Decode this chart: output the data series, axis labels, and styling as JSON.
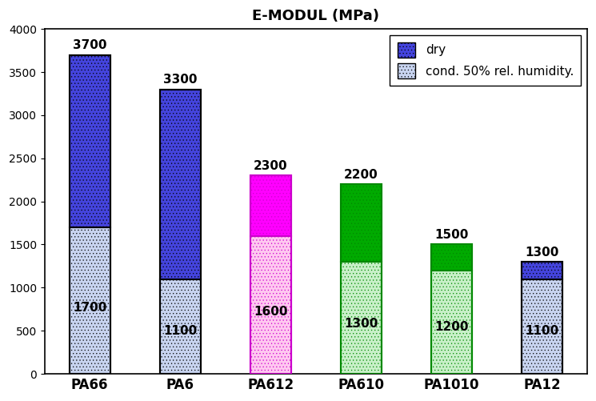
{
  "title": "E-MODUL (MPa)",
  "categories": [
    "PA66",
    "PA6",
    "PA612",
    "PA610",
    "PA1010",
    "PA12"
  ],
  "dry_values": [
    3700,
    3300,
    2300,
    2200,
    1500,
    1300
  ],
  "cond_values": [
    1700,
    1100,
    1600,
    1300,
    1200,
    1100
  ],
  "dry_colors": [
    "#4444dd",
    "#4444dd",
    "#ff00ff",
    "#00aa00",
    "#00aa00",
    "#4444dd"
  ],
  "cond_colors": [
    "#c8d4f0",
    "#c8d4f0",
    "#ffc8f0",
    "#c8f0c8",
    "#c8f0c8",
    "#c8d4f0"
  ],
  "bar_edge_colors": [
    "#000000",
    "#000000",
    "#cc00cc",
    "#008800",
    "#008800",
    "#000000"
  ],
  "ylim": [
    0,
    4000
  ],
  "yticks": [
    0,
    500,
    1000,
    1500,
    2000,
    2500,
    3000,
    3500,
    4000
  ],
  "legend_dry_color": "#4444dd",
  "legend_cond_color": "#c8d4f0",
  "legend_dry_label": "dry",
  "legend_cond_label": "cond. 50% rel. humidity.",
  "bar_width": 0.45,
  "title_fontsize": 13,
  "label_fontsize": 12,
  "tick_fontsize": 10,
  "value_fontsize": 11
}
